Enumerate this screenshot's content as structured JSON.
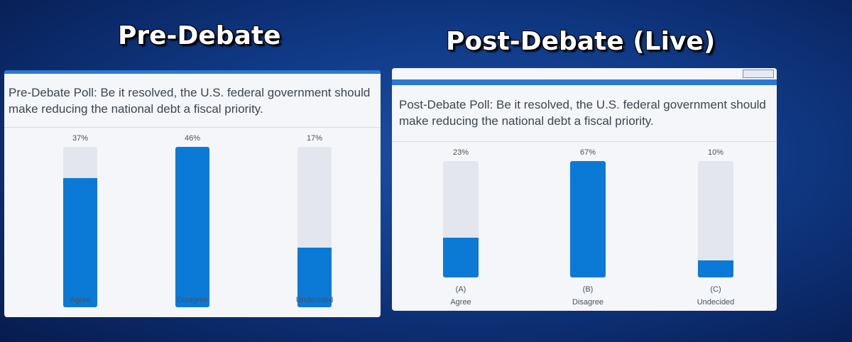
{
  "headings": {
    "left": "Pre-Debate",
    "right": "Post-Debate (Live)"
  },
  "chart_data": [
    {
      "type": "bar",
      "title": "Pre-Debate Poll: Be it resolved, the U.S. federal government should make reducing the national debt a fiscal priority.",
      "categories": [
        "Agree",
        "Disagree",
        "Undecided"
      ],
      "values": [
        37,
        46,
        17
      ],
      "value_labels": [
        "37%",
        "46%",
        "17%"
      ],
      "unit": "%",
      "ylim": [
        0,
        46
      ],
      "colors": {
        "fill": "#0b79d6",
        "track": "#e3e6ec"
      }
    },
    {
      "type": "bar",
      "title": "Post-Debate Poll: Be it resolved, the U.S. federal government should make reducing the national debt a fiscal priority.",
      "categories": [
        "Agree",
        "Disagree",
        "Undecided"
      ],
      "letters": [
        "(A)",
        "(B)",
        "(C)"
      ],
      "values": [
        23,
        67,
        10
      ],
      "value_labels": [
        "23%",
        "67%",
        "10%"
      ],
      "unit": "%",
      "ylim": [
        0,
        67
      ],
      "colors": {
        "fill": "#0b79d6",
        "track": "#e3e6ec"
      }
    }
  ]
}
